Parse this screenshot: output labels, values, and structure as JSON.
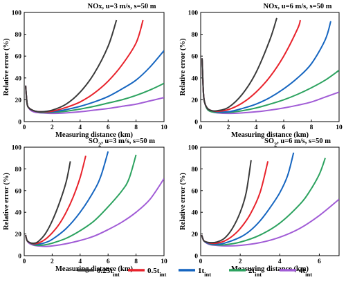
{
  "chart_data": [
    {
      "type": "line",
      "title": "NOx, u=3 m/s, s=50 m",
      "xlabel": "Measuring distance (km)",
      "ylabel": "Relative error (%)",
      "xlim": [
        0,
        10
      ],
      "ylim": [
        0,
        100
      ],
      "xticks": [
        0,
        2,
        4,
        6,
        8,
        10
      ],
      "yticks": [
        0,
        20,
        40,
        60,
        80,
        100
      ],
      "series": [
        {
          "name": "0.25t_int",
          "x": [
            0.1,
            0.2,
            0.3,
            0.5,
            0.8,
            1.2,
            2,
            3,
            4,
            5,
            6,
            6.6
          ],
          "y": [
            33,
            17,
            13,
            11,
            9.5,
            9,
            10.5,
            16,
            27,
            44,
            69,
            93
          ]
        },
        {
          "name": "0.5t_int",
          "x": [
            0.1,
            0.2,
            0.3,
            0.5,
            0.8,
            1.2,
            2,
            3,
            4,
            5,
            6,
            7,
            8,
            8.5
          ],
          "y": [
            33,
            17,
            13,
            11,
            9.5,
            9,
            9.5,
            13,
            18,
            26,
            37,
            52,
            72,
            93
          ]
        },
        {
          "name": "1t_int",
          "x": [
            0.1,
            0.2,
            0.3,
            0.5,
            0.8,
            1.2,
            2,
            3,
            4,
            5,
            6,
            7,
            8,
            9,
            10
          ],
          "y": [
            33,
            17,
            13,
            11,
            9.5,
            9,
            9,
            11,
            14,
            18,
            23,
            30,
            38,
            50,
            65
          ]
        },
        {
          "name": "2t_int",
          "x": [
            0.1,
            0.2,
            0.3,
            0.5,
            0.8,
            1.2,
            2,
            3,
            4,
            5,
            6,
            7,
            8,
            9,
            10
          ],
          "y": [
            33,
            17,
            13,
            11,
            9.5,
            8.5,
            8.5,
            9.5,
            11.5,
            14,
            17,
            20,
            24,
            29,
            35
          ]
        },
        {
          "name": "4t_int",
          "x": [
            0.1,
            0.2,
            0.3,
            0.5,
            0.8,
            1.2,
            2,
            3,
            4,
            5,
            6,
            7,
            8,
            9,
            10
          ],
          "y": [
            33,
            17,
            13,
            10,
            8.5,
            8,
            7.5,
            8,
            9,
            10.5,
            12,
            14,
            16,
            19,
            22
          ]
        }
      ]
    },
    {
      "type": "line",
      "title": "NOx, u=6 m/s, s=50 m",
      "xlabel": "Measuring distance (km)",
      "ylabel": "Relative error (%)",
      "xlim": [
        0,
        10
      ],
      "ylim": [
        0,
        100
      ],
      "xticks": [
        0,
        2,
        4,
        6,
        8,
        10
      ],
      "yticks": [
        0,
        20,
        40,
        60,
        80,
        100
      ],
      "series": [
        {
          "name": "0.25t_int",
          "x": [
            0.1,
            0.2,
            0.3,
            0.5,
            0.8,
            1.2,
            2,
            3,
            4,
            5,
            5.5
          ],
          "y": [
            58,
            26,
            17,
            12,
            10,
            10,
            13,
            25,
            45,
            75,
            95
          ]
        },
        {
          "name": "0.5t_int",
          "x": [
            0.1,
            0.2,
            0.3,
            0.5,
            0.8,
            1.2,
            2,
            3,
            4,
            5,
            6,
            7,
            7.2
          ],
          "y": [
            58,
            26,
            17,
            12,
            10,
            9.5,
            11,
            17,
            27,
            41,
            60,
            85,
            93
          ]
        },
        {
          "name": "1t_int",
          "x": [
            0.1,
            0.2,
            0.3,
            0.5,
            0.8,
            1.2,
            2,
            3,
            4,
            5,
            6,
            7,
            8,
            9,
            9.4
          ],
          "y": [
            58,
            26,
            17,
            12,
            10,
            9,
            9,
            12,
            16,
            22,
            30,
            40,
            53,
            75,
            92
          ]
        },
        {
          "name": "2t_int",
          "x": [
            0.1,
            0.2,
            0.3,
            0.5,
            0.8,
            1.2,
            2,
            3,
            4,
            5,
            6,
            7,
            8,
            9,
            10
          ],
          "y": [
            58,
            26,
            17,
            11,
            9,
            8.5,
            8.5,
            10,
            12.5,
            16,
            20,
            25,
            31,
            38,
            47
          ]
        },
        {
          "name": "4t_int",
          "x": [
            0.1,
            0.2,
            0.3,
            0.5,
            0.8,
            1.2,
            2,
            3,
            4,
            5,
            6,
            7,
            8,
            9,
            10
          ],
          "y": [
            58,
            26,
            17,
            11,
            9,
            8,
            7.5,
            8,
            9,
            10.5,
            12.5,
            15,
            18,
            22.5,
            27
          ]
        }
      ]
    },
    {
      "type": "line",
      "title": "SO2, u=3 m/s, s=50 m",
      "xlabel": "Measuring distance (km)",
      "ylabel": "Relative error (%)",
      "xlim": [
        0,
        10
      ],
      "ylim": [
        0,
        100
      ],
      "xticks": [
        0,
        2,
        4,
        6,
        8,
        10
      ],
      "yticks": [
        0,
        20,
        40,
        60,
        80,
        100
      ],
      "series": [
        {
          "name": "0.25t_int",
          "x": [
            0.1,
            0.2,
            0.4,
            0.7,
            1,
            1.5,
            2,
            2.5,
            3,
            3.3
          ],
          "y": [
            19,
            14,
            12,
            11.5,
            13,
            20,
            32,
            48,
            68,
            87
          ]
        },
        {
          "name": "0.5t_int",
          "x": [
            0.1,
            0.2,
            0.4,
            0.7,
            1,
            1.5,
            2,
            2.5,
            3,
            3.5,
            4,
            4.4
          ],
          "y": [
            19,
            14,
            12,
            11,
            11.5,
            15,
            21,
            29,
            40,
            54,
            72,
            92
          ]
        },
        {
          "name": "1t_int",
          "x": [
            0.1,
            0.2,
            0.4,
            0.7,
            1,
            1.5,
            2,
            3,
            4,
            5,
            5.5,
            6
          ],
          "y": [
            19,
            14,
            12,
            10.5,
            10.5,
            12,
            15,
            25,
            40,
            60,
            74,
            96
          ]
        },
        {
          "name": "2t_int",
          "x": [
            0.1,
            0.2,
            0.4,
            0.7,
            1,
            1.5,
            2,
            3,
            4,
            5,
            6,
            7,
            7.5,
            8
          ],
          "y": [
            19,
            14,
            12,
            10,
            9.5,
            10,
            11.5,
            16,
            23,
            32,
            45,
            60,
            71,
            93
          ]
        },
        {
          "name": "4t_int",
          "x": [
            0.1,
            0.2,
            0.4,
            0.7,
            1,
            1.5,
            2,
            3,
            4,
            5,
            6,
            7,
            8,
            9,
            10
          ],
          "y": [
            19,
            14,
            11,
            9.5,
            9,
            8.5,
            9,
            11,
            14,
            18,
            24,
            31,
            40,
            52,
            71
          ]
        }
      ]
    },
    {
      "type": "line",
      "title": "SO2, u=6 m/s, s=50 m",
      "xlabel": "Measuring distance (km)",
      "ylabel": "Relative error (%)",
      "xlim": [
        0,
        7
      ],
      "ylim": [
        0,
        100
      ],
      "xticks": [
        0,
        2,
        4,
        6
      ],
      "yticks": [
        0,
        20,
        40,
        60,
        80,
        100
      ],
      "series": [
        {
          "name": "0.25t_int",
          "x": [
            0.05,
            0.15,
            0.3,
            0.5,
            0.8,
            1.2,
            1.6,
            2,
            2.3,
            2.55
          ],
          "y": [
            19,
            14,
            12.5,
            12,
            12.5,
            16,
            25,
            40,
            58,
            88
          ]
        },
        {
          "name": "0.5t_int",
          "x": [
            0.05,
            0.15,
            0.3,
            0.5,
            0.8,
            1.2,
            1.6,
            2,
            2.5,
            3,
            3.4
          ],
          "y": [
            19,
            14,
            12.5,
            11.5,
            11.5,
            13.5,
            18,
            25,
            38,
            58,
            87
          ]
        },
        {
          "name": "1t_int",
          "x": [
            0.05,
            0.15,
            0.3,
            0.5,
            0.8,
            1.2,
            2,
            2.5,
            3,
            3.5,
            4,
            4.4,
            4.7
          ],
          "y": [
            19,
            14,
            12,
            11,
            10.5,
            11.5,
            17,
            23,
            32,
            44,
            58,
            74,
            95
          ]
        },
        {
          "name": "2t_int",
          "x": [
            0.05,
            0.15,
            0.3,
            0.5,
            0.8,
            1.2,
            2,
            3,
            4,
            5,
            5.5,
            6,
            6.3
          ],
          "y": [
            19,
            14,
            12,
            10.5,
            10,
            10,
            12.5,
            19,
            30,
            47,
            59,
            75,
            90
          ]
        },
        {
          "name": "4t_int",
          "x": [
            0.05,
            0.15,
            0.3,
            0.5,
            0.8,
            1.2,
            2,
            3,
            4,
            5,
            6,
            7
          ],
          "y": [
            19,
            14,
            11.5,
            10,
            9.5,
            9,
            9.5,
            12,
            17,
            25,
            37,
            52
          ]
        }
      ]
    }
  ],
  "legend": {
    "placement": "bottom",
    "items": [
      {
        "base": "0.25t",
        "sub": "int",
        "color": "#3a3a3a"
      },
      {
        "base": "0.5t",
        "sub": "int",
        "color": "#e8222b"
      },
      {
        "base": "1t",
        "sub": "int",
        "color": "#1565c0"
      },
      {
        "base": "2t",
        "sub": "int",
        "color": "#2ca25f"
      },
      {
        "base": "4t",
        "sub": "int",
        "color": "#a15cd6"
      }
    ]
  },
  "panel_titles": [
    {
      "pre": "NOx, u=3 m/s, s=50 m",
      "sub": "",
      "post": ""
    },
    {
      "pre": "NOx, u=6 m/s, s=50 m",
      "sub": "",
      "post": ""
    },
    {
      "pre": "SO",
      "sub": "2",
      "post": ", u=3 m/s, s=50 m"
    },
    {
      "pre": "SO",
      "sub": "2",
      "post": ", u=6 m/s, s=50 m"
    }
  ]
}
